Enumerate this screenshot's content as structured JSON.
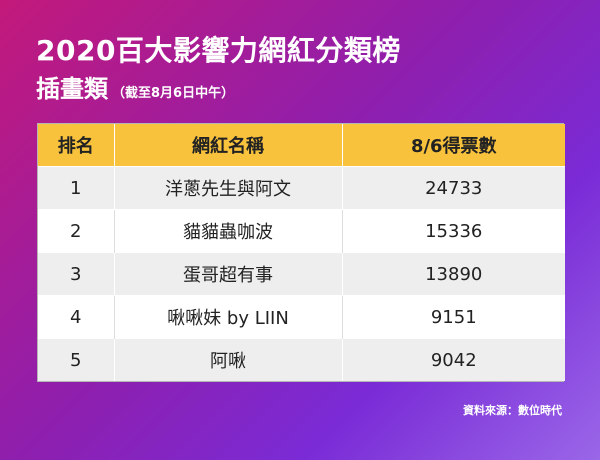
{
  "title": "2020百大影響力網紅分類榜",
  "subtitle": {
    "main": "插畫類",
    "note": "（截至8月6日中午）"
  },
  "colors": {
    "header_bg": "#f8c23d",
    "row_odd_bg": "#eeeeee",
    "row_even_bg": "#ffffff",
    "gradient_start": "#c3197a",
    "gradient_end": "#9a67e8"
  },
  "table": {
    "headers": [
      "排名",
      "網紅名稱",
      "8/6得票數"
    ],
    "rows": [
      [
        "1",
        "洋蔥先生與阿文",
        "24733"
      ],
      [
        "2",
        "貓貓蟲咖波",
        "15336"
      ],
      [
        "3",
        "蛋哥超有事",
        "13890"
      ],
      [
        "4",
        "啾啾妹 by LIIN",
        "9151"
      ],
      [
        "5",
        "阿啾",
        "9042"
      ]
    ]
  },
  "source": "資料來源：數位時代"
}
